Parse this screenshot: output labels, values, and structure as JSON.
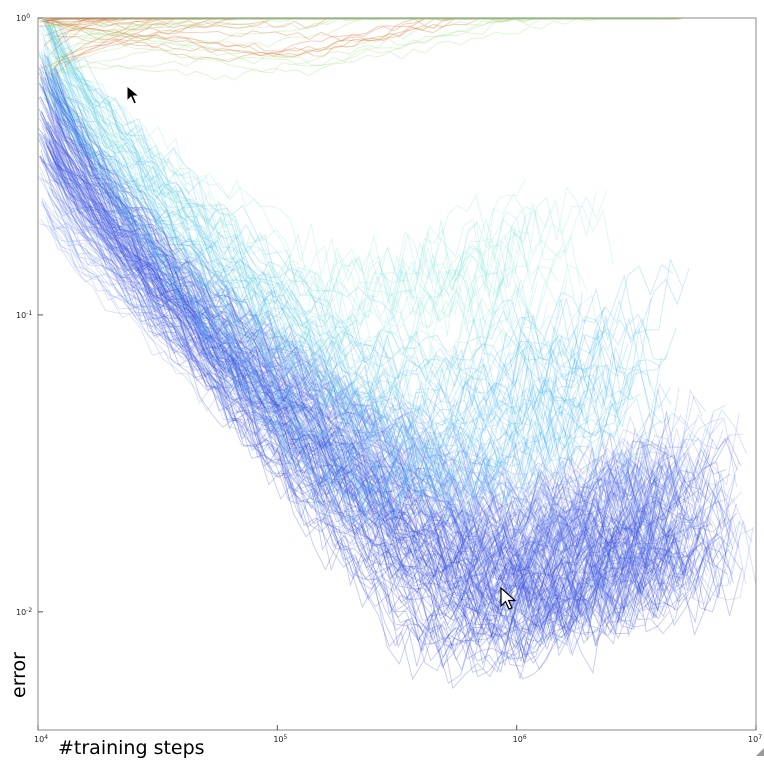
{
  "chart_data": {
    "type": "line",
    "title": "",
    "xlabel": "#training steps",
    "ylabel": "error",
    "x_scale": "log",
    "y_scale": "log",
    "xlim": [
      10000,
      10000000
    ],
    "ylim": [
      0.004,
      1
    ],
    "x_ticks": [
      {
        "value": 10000,
        "base": "10",
        "exp": "4"
      },
      {
        "value": 100000,
        "base": "10",
        "exp": "5"
      },
      {
        "value": 1000000,
        "base": "10",
        "exp": "6"
      },
      {
        "value": 10000000,
        "base": "10",
        "exp": "7"
      }
    ],
    "y_ticks": [
      {
        "value": 1,
        "base": "10",
        "exp": "0"
      },
      {
        "value": 0.1,
        "base": "10",
        "exp": "-1"
      },
      {
        "value": 0.01,
        "base": "10",
        "exp": "-2"
      }
    ],
    "grid": false,
    "legend": "none",
    "series_groups": [
      {
        "color": "#2b3fd6",
        "run_count": 110,
        "start_error": 0.5,
        "min_error": 0.009,
        "min_at_steps": 700000,
        "end_steps": 5000000
      },
      {
        "color": "#6f8cf2",
        "run_count": 60,
        "start_error": 0.3,
        "min_error": 0.012,
        "min_at_steps": 1200000,
        "end_steps": 6000000
      },
      {
        "color": "#3fb3f0",
        "run_count": 45,
        "start_error": 0.85,
        "min_error": 0.03,
        "min_at_steps": 300000,
        "end_steps": 3000000
      },
      {
        "color": "#7fe3d8",
        "run_count": 25,
        "start_error": 0.9,
        "min_error": 0.06,
        "min_at_steps": 150000,
        "end_steps": 1500000
      },
      {
        "color": "#e06a2c",
        "run_count": 25,
        "start_error": 0.97,
        "min_error": 0.92,
        "min_at_steps": 100000,
        "end_steps": 3000000
      },
      {
        "color": "#9fe07a",
        "run_count": 15,
        "start_error": 0.95,
        "min_error": 0.88,
        "min_at_steps": 100000,
        "end_steps": 3000000
      }
    ]
  },
  "cursors": [
    {
      "icon": "arrow-cursor-icon",
      "color": "#000000"
    },
    {
      "icon": "arrow-cursor-icon",
      "color": "#ffffff"
    }
  ]
}
